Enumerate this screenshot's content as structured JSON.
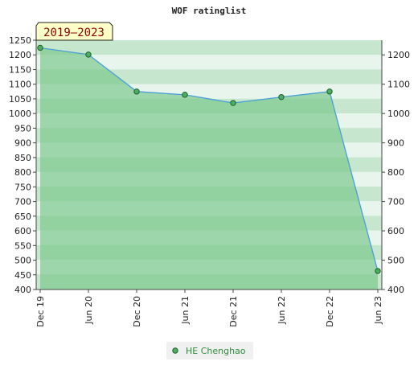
{
  "chart_data": {
    "type": "area",
    "title": "WOF ratinglist",
    "period_label": "2019–2023",
    "categories": [
      "Dec 19",
      "Jun 20",
      "Dec 20",
      "Jun 21",
      "Dec 21",
      "Jun 22",
      "Dec 22",
      "Jun 23"
    ],
    "series": [
      {
        "name": "HE Chenghao",
        "values": [
          1224,
          1201,
          1075,
          1064,
          1036,
          1056,
          1075,
          463
        ]
      }
    ],
    "ylim": [
      400,
      1250
    ],
    "left_ticks": [
      400,
      450,
      500,
      550,
      600,
      650,
      700,
      750,
      800,
      850,
      900,
      950,
      1000,
      1050,
      1100,
      1150,
      1200,
      1250
    ],
    "right_ticks": [
      400,
      500,
      600,
      700,
      800,
      900,
      1000,
      1100,
      1200
    ],
    "colors": {
      "line": "#4a9fd8",
      "marker_fill": "#4caf60",
      "marker_stroke": "#1f5f2a",
      "area_fill": "#7cc98f",
      "band_dark": "#bfe3c8",
      "band_light": "#e8f5ec",
      "badge_fill": "#ffffc8",
      "legend_text": "#2e8b3e"
    },
    "legend_position": "bottom-center"
  }
}
